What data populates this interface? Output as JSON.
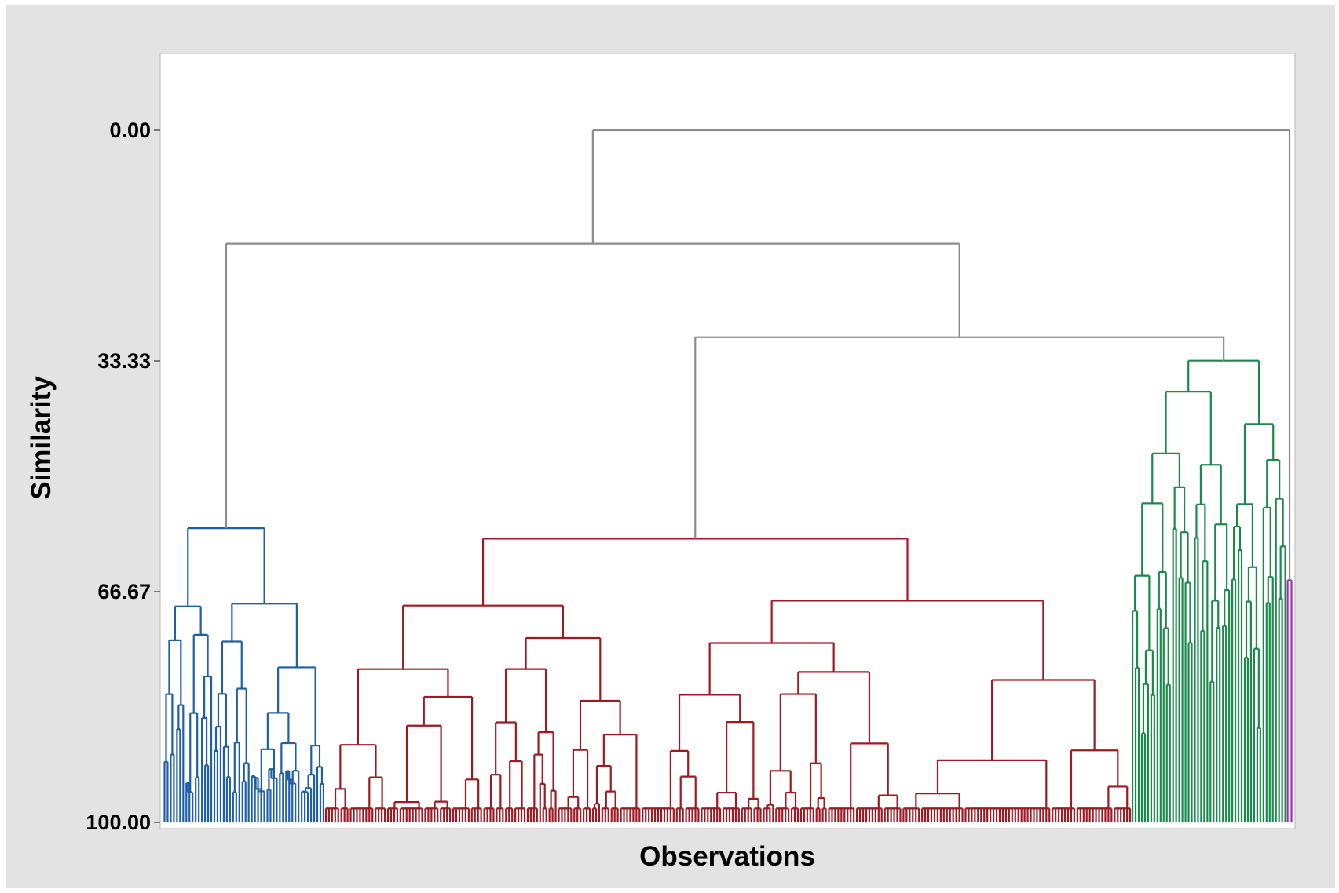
{
  "chart_data": {
    "type": "dendrogram",
    "title": "",
    "xlabel": "Observations",
    "ylabel": "Similarity",
    "ylim": [
      0,
      100
    ],
    "y_inverted": true,
    "yticks": [
      0.0,
      33.33,
      66.67,
      100.0
    ],
    "ytick_labels": [
      "0.00",
      "33.33",
      "66.67",
      "100.00"
    ],
    "grid": false,
    "legend": "none",
    "colors": {
      "background": "#e3e3e3",
      "plot_area": "#ffffff",
      "upper_links": "#8c8c8c",
      "cluster_blue": "#1f5fa8",
      "cluster_red": "#9e1a22",
      "cluster_green": "#1a8a4a",
      "cluster_purple": "#9c2fa8"
    },
    "clusters": [
      {
        "color_key": "cluster_blue",
        "leaf_count": 52,
        "top_similarity": 57.5,
        "leaf_similarity_range": [
          79,
          92
        ]
      },
      {
        "color_key": "cluster_red",
        "leaf_count": 260,
        "top_similarity": 59.0,
        "leaf_similarity_range": [
          80,
          98
        ]
      },
      {
        "color_key": "cluster_green",
        "leaf_count": 50,
        "top_similarity": 33.3,
        "leaf_similarity_range": [
          83,
          92
        ]
      },
      {
        "color_key": "cluster_purple",
        "leaf_count": 2,
        "top_similarity": 65.0,
        "leaf_similarity_range": [
          75,
          88
        ]
      }
    ],
    "merges": [
      {
        "left": "cluster_blue",
        "right": "cluster_red+green+purple",
        "similarity": 16.4
      },
      {
        "left": "cluster_red",
        "right": "cluster_green",
        "similarity": 29.9
      },
      {
        "left": "blue+red+green",
        "right": "cluster_purple",
        "similarity": 0.0
      }
    ]
  }
}
